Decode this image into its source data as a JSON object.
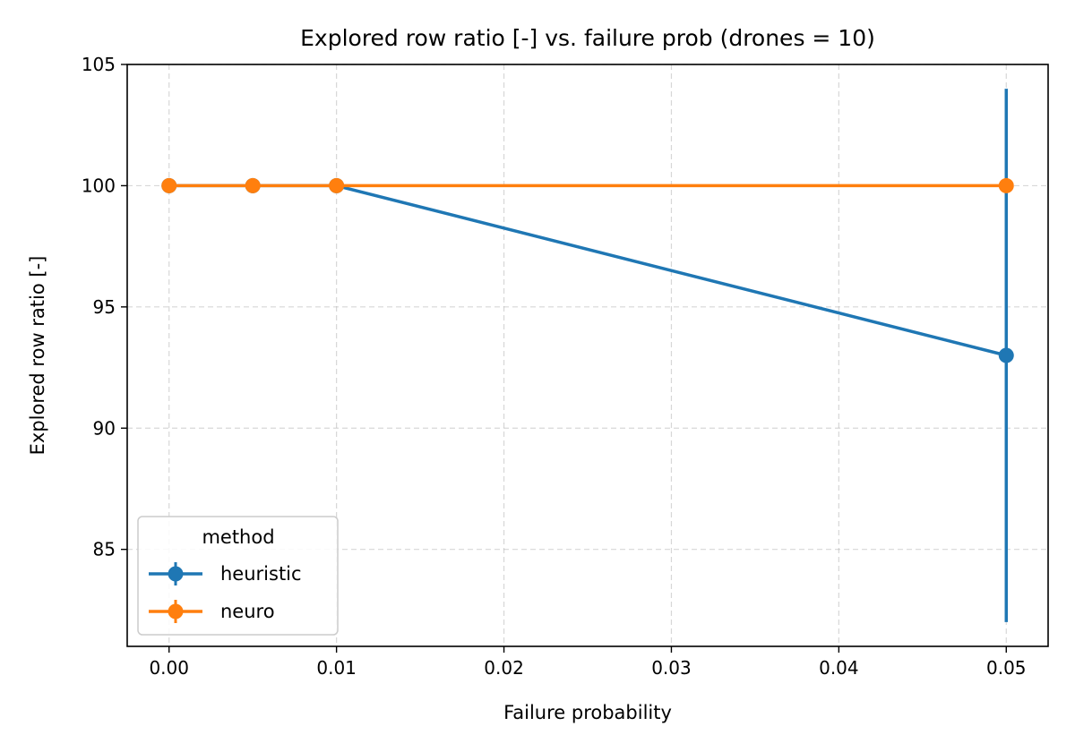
{
  "chart_data": {
    "type": "line",
    "title": "Explored row ratio [-] vs. failure prob (drones = 10)",
    "xlabel": "Failure probability",
    "ylabel": "Explored row ratio [-]",
    "xlim": [
      -0.0025,
      0.0525
    ],
    "ylim": [
      81,
      105
    ],
    "xticks": [
      0.0,
      0.01,
      0.02,
      0.03,
      0.04,
      0.05
    ],
    "xtick_labels": [
      "0.00",
      "0.01",
      "0.02",
      "0.03",
      "0.04",
      "0.05"
    ],
    "yticks": [
      85,
      90,
      95,
      100,
      105
    ],
    "ytick_labels": [
      "85",
      "90",
      "95",
      "100",
      "105"
    ],
    "grid": true,
    "legend": {
      "title": "method",
      "placement": "lower-left"
    },
    "series": [
      {
        "name": "heuristic",
        "color": "#1f77b4",
        "x": [
          0.0,
          0.005,
          0.01,
          0.05
        ],
        "y": [
          100,
          100,
          100,
          93
        ],
        "yerr_low": [
          100,
          100,
          100,
          82
        ],
        "yerr_high": [
          100,
          100,
          100,
          104
        ]
      },
      {
        "name": "neuro",
        "color": "#ff7f0e",
        "x": [
          0.0,
          0.005,
          0.01,
          0.05
        ],
        "y": [
          100,
          100,
          100,
          100
        ],
        "yerr_low": [
          100,
          100,
          100,
          100
        ],
        "yerr_high": [
          100,
          100,
          100,
          100
        ]
      }
    ]
  }
}
